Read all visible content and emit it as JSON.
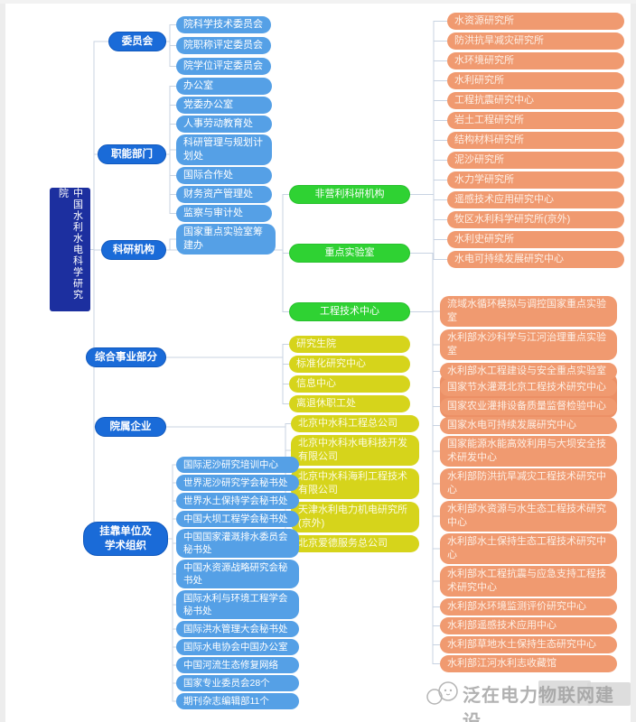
{
  "root": {
    "label": "中国水利水电科学研究院"
  },
  "level1": {
    "committee": "委员会",
    "departments": "职能部门",
    "research": "科研机构",
    "comprehensive": "综合事业部分",
    "enterprises": "院属企业",
    "affiliated": "挂靠单位及\n学术组织"
  },
  "level2": {
    "nonprofit": "非营利科研机构",
    "keylabs": "重点实验室",
    "engcenters": "工程技术中心"
  },
  "groups": {
    "committee_children": [
      "院科学技术委员会",
      "院职称评定委员会",
      "院学位评定委员会"
    ],
    "department_children": [
      "办公室",
      "党委办公室",
      "人事劳动教育处",
      "科研管理与规划计划处",
      "国际合作处",
      "财务资产管理处",
      "监察与审计处"
    ],
    "research_direct": [
      "国家重点实验室筹建办"
    ],
    "nonprofit_children": [
      "水资源研究所",
      "防洪抗旱减灾研究所",
      "水环境研究所",
      "水利研究所",
      "工程抗震研究中心",
      "岩土工程研究所",
      "结构材料研究所",
      "泥沙研究所",
      "水力学研究所",
      "遥感技术应用研究中心",
      "牧区水利科学研究所(京外)",
      "水利史研究所",
      "水电可持续发展研究中心"
    ],
    "keylab_children": [
      "流域水循环模拟与调控国家重点实验室",
      "水利部水沙科学与江河治理重点实验室",
      "水利部水工程建设与安全重点实验室"
    ],
    "engcenter_children": [
      "国家节水灌溉北京工程技术研究中心",
      "国家农业灌排设备质量监督检验中心",
      "国家水电可持续发展研究中心",
      "国家能源水能高效利用与大坝安全技术研发中心",
      "水利部防洪抗旱减灾工程技术研究中心",
      "水利部水资源与水生态工程技术研究中心",
      "水利部水土保持生态工程技术研究中心",
      "水利部水工程抗震与应急支持工程技术研究中心",
      "水利部水环境监测评价研究中心",
      "水利部遥感技术应用中心",
      "水利部草地水土保持生态研究中心",
      "水利部江河水利志收藏馆"
    ],
    "comprehensive_children": [
      "研究生院",
      "标准化研究中心",
      "信息中心",
      "离退休职工处"
    ],
    "enterprise_children": [
      "北京中水科工程总公司",
      "北京中水科水电科技开发有限公司",
      "北京中水科海利工程技术有限公司",
      "天津水利电力机电研究所(京外)",
      "北京爱德服务总公司"
    ],
    "affiliated_children": [
      "国际泥沙研究培训中心",
      "世界泥沙研究学会秘书处",
      "世界水土保持学会秘书处",
      "中国大坝工程学会秘书处",
      "中国国家灌溉排水委员会秘书处",
      "中国水资源战略研究会秘书处",
      "国际水利与环境工程学会秘书处",
      "国际洪水管理大会秘书处",
      "国际水电协会中国办公室",
      "中国河流生态修复网络",
      "国家专业委员会28个",
      "期刊杂志编辑部11个"
    ]
  },
  "watermark": {
    "text": "泛在电力物联网建设"
  },
  "colors": {
    "root_navy": "#1c2f9f",
    "level1_blue": "#1a6bd8",
    "child_blue": "#55a0e6",
    "green": "#2fd233",
    "yellow": "#d6d41b",
    "orange": "#f09a70",
    "wire": "#c8d3e2"
  }
}
